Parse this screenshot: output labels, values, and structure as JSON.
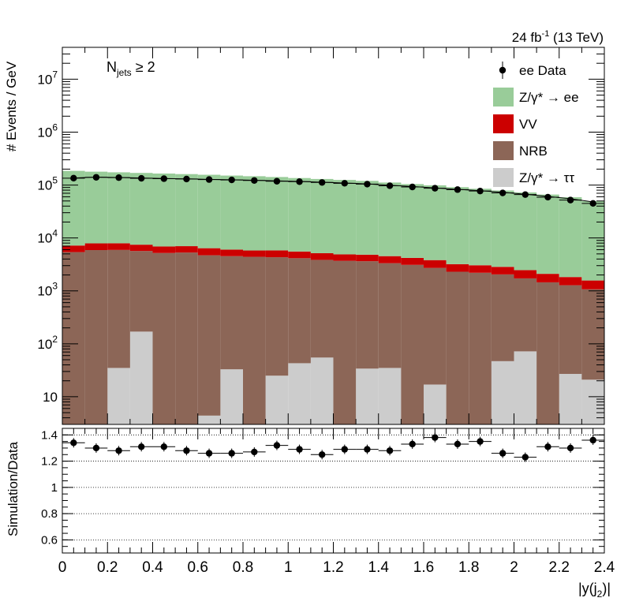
{
  "header": {
    "lumi_prefix": "24 fb",
    "lumi_exp": "-1",
    "lumi_suffix": " (13 TeV)"
  },
  "label": {
    "njets_main": "N",
    "njets_sub": "jets",
    "njets_rest": " ≥ 2"
  },
  "legend": [
    {
      "kind": "marker",
      "label": "ee Data",
      "color": "#000000"
    },
    {
      "kind": "box",
      "label": "Z/γ* → ee",
      "color": "#99cc99"
    },
    {
      "kind": "box",
      "label": "VV",
      "color": "#cc0000"
    },
    {
      "kind": "box",
      "label": "NRB",
      "color": "#8c6657"
    },
    {
      "kind": "box",
      "label": "Z/γ* → ττ",
      "color": "#cccccc"
    }
  ],
  "chart_data": [
    {
      "type": "bar",
      "stacked": true,
      "log_y": true,
      "title": "",
      "xlabel": "|y(j2)|",
      "ylabel": "# Events / GeV",
      "xlim": [
        0,
        2.4
      ],
      "ylim": [
        3,
        40000000
      ],
      "bin_edges": [
        0,
        0.1,
        0.2,
        0.3,
        0.4,
        0.5,
        0.6,
        0.7,
        0.8,
        0.9,
        1.0,
        1.1,
        1.2,
        1.3,
        1.4,
        1.5,
        1.6,
        1.7,
        1.8,
        1.9,
        2.0,
        2.1,
        2.2,
        2.3,
        2.4
      ],
      "y_tick_labels": [
        "10",
        "10²",
        "10³",
        "10⁴",
        "10⁵",
        "10⁶",
        "10⁷"
      ],
      "y_tick_values": [
        10,
        100,
        1000,
        10000,
        100000,
        1000000,
        10000000
      ],
      "series_stack_order": [
        "Z/γ* → ττ",
        "NRB",
        "VV",
        "Z/γ* → ee"
      ],
      "series": [
        {
          "name": "Z/γ* → ττ",
          "color": "#cccccc",
          "values": [
            0,
            0,
            35,
            170,
            0,
            0,
            4.4,
            33,
            0,
            25,
            43,
            55,
            0,
            34,
            35,
            0,
            17,
            0,
            0,
            47,
            72,
            0,
            27,
            21
          ]
        },
        {
          "name": "NRB",
          "color": "#8c6657",
          "values": [
            5400,
            5900,
            5900,
            5500,
            5200,
            5300,
            4700,
            4500,
            4400,
            4300,
            4100,
            3800,
            3700,
            3600,
            3300,
            3100,
            2700,
            2300,
            2200,
            2000,
            1650,
            1450,
            1250,
            1050
          ]
        },
        {
          "name": "VV",
          "color": "#cc0000",
          "values": [
            1800,
            2000,
            2000,
            1800,
            1700,
            1700,
            1700,
            1500,
            1400,
            1500,
            1400,
            1300,
            1200,
            1200,
            1200,
            1100,
            1100,
            900,
            850,
            800,
            750,
            650,
            550,
            500
          ]
        },
        {
          "name": "Z/γ* → ee",
          "color": "#99cc99",
          "values": [
            178000,
            171000,
            166000,
            162000,
            158000,
            154000,
            150000,
            145000,
            141000,
            136000,
            130000,
            125000,
            120000,
            115000,
            107000,
            100000,
            95000,
            88000,
            82000,
            76000,
            70000,
            64000,
            57000,
            48000
          ]
        }
      ],
      "data": {
        "name": "ee Data",
        "color": "#000000",
        "values": [
          135000,
          140000,
          138000,
          134000,
          132000,
          130000,
          127000,
          125000,
          122000,
          118000,
          116000,
          112000,
          108000,
          104000,
          97000,
          92000,
          87000,
          82000,
          77000,
          71000,
          66000,
          59000,
          52000,
          45000
        ]
      },
      "mc_total_line": [
        136000,
        141000,
        139000,
        136000,
        133000,
        131000,
        128000,
        126000,
        123000,
        120000,
        117000,
        113000,
        109000,
        105000,
        99000,
        94000,
        88000,
        83000,
        78000,
        73000,
        67000,
        61000,
        55000,
        48000
      ]
    },
    {
      "type": "scatter",
      "title": "",
      "xlabel": "|y(j2)|",
      "ylabel": "Simulation/Data",
      "xlim": [
        0,
        2.4
      ],
      "ylim": [
        0.5,
        1.45
      ],
      "gridlines": [
        0.6,
        0.8,
        1.0,
        1.2,
        1.4
      ],
      "x_tick_labels": [
        "0",
        "0.2",
        "0.4",
        "0.6",
        "0.8",
        "1",
        "1.2",
        "1.4",
        "1.6",
        "1.8",
        "2",
        "2.2",
        "2.4"
      ],
      "y_tick_labels": [
        "0.6",
        "0.8",
        "1",
        "1.2",
        "1.4"
      ],
      "x": [
        0.05,
        0.15,
        0.25,
        0.35,
        0.45,
        0.55,
        0.65,
        0.75,
        0.85,
        0.95,
        1.05,
        1.15,
        1.25,
        1.35,
        1.45,
        1.55,
        1.65,
        1.75,
        1.85,
        1.95,
        2.05,
        2.15,
        2.25,
        2.35
      ],
      "values": [
        1.34,
        1.3,
        1.28,
        1.31,
        1.31,
        1.28,
        1.26,
        1.26,
        1.27,
        1.32,
        1.29,
        1.25,
        1.29,
        1.29,
        1.28,
        1.33,
        1.38,
        1.33,
        1.35,
        1.26,
        1.23,
        1.31,
        1.3,
        1.36
      ]
    }
  ]
}
